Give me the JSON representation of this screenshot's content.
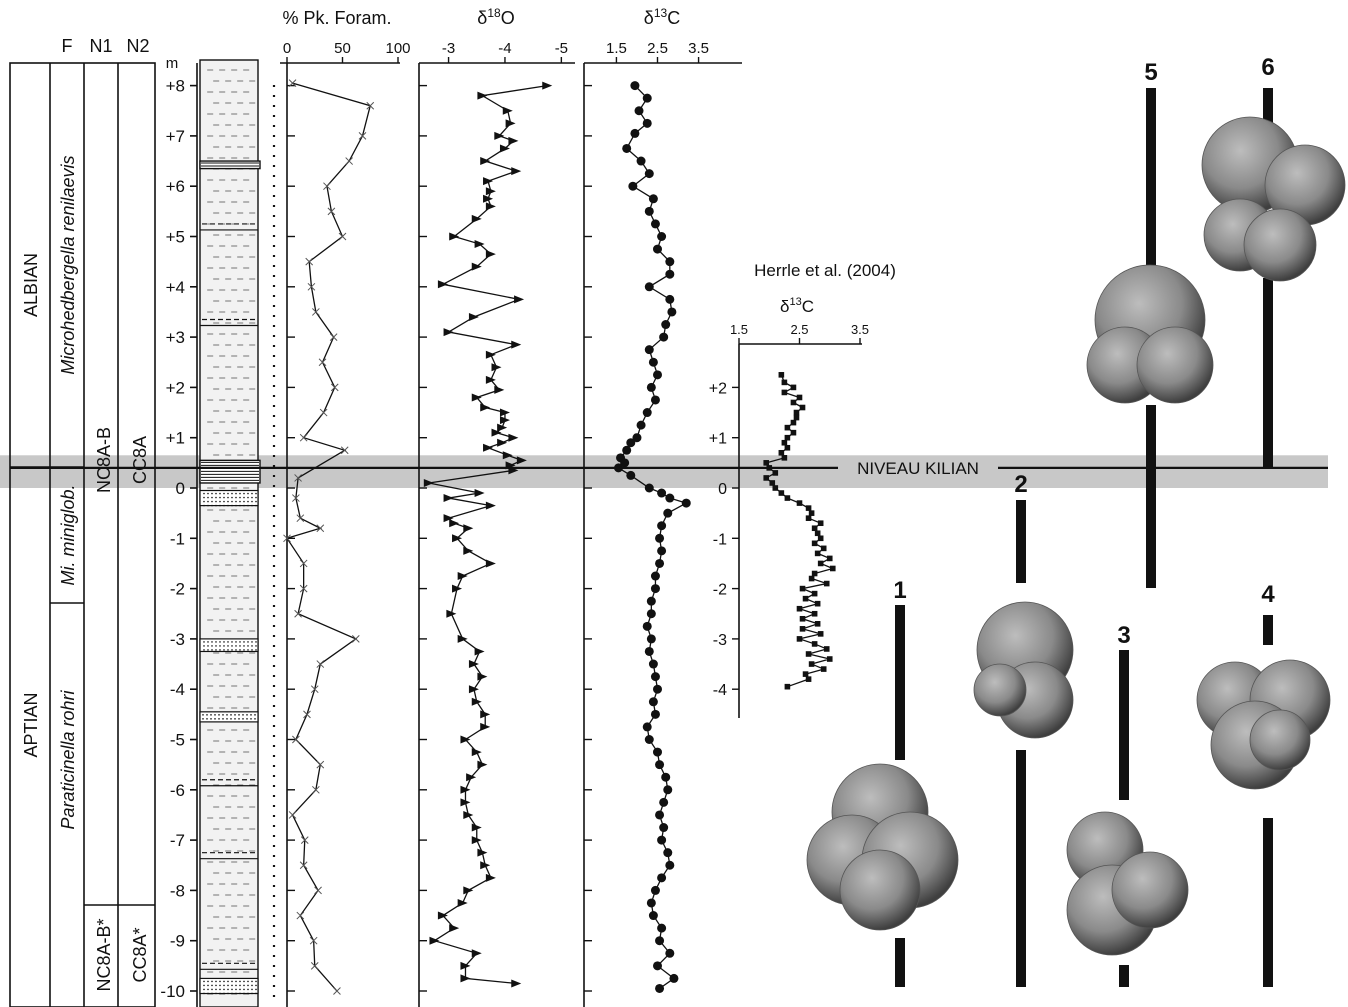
{
  "columns": {
    "headers": [
      "F",
      "N1",
      "N2"
    ],
    "depth_unit": "m",
    "stages": [
      "ALBIAN",
      "APTIAN"
    ],
    "zones_F": [
      "Microhedbergella renilaevis",
      "Mi. miniglob.",
      "Paraticinella rohri"
    ],
    "zones_N1": [
      "NC8A-B",
      "NC8A-B*"
    ],
    "zones_N2": [
      "CC8A",
      "CC8A*"
    ]
  },
  "depth_ticks": [
    "+8",
    "+7",
    "+6",
    "+5",
    "+4",
    "+3",
    "+2",
    "+1",
    "0",
    "-1",
    "-2",
    "-3",
    "-4",
    "-5",
    "-6",
    "-7",
    "-8",
    "-9",
    "-10"
  ],
  "marker": {
    "label": "NIVEAU KILIAN",
    "depth": 0.4,
    "band": [
      0.0,
      0.65
    ]
  },
  "herrle_title": "Herrle et al. (2004)",
  "specimens": [
    "1",
    "2",
    "3",
    "4",
    "5",
    "6"
  ],
  "chart_data": [
    {
      "type": "line",
      "title": "% Pk. Foram.",
      "xlim": [
        0,
        100
      ],
      "x_ticks": [
        "0",
        "50",
        "100"
      ],
      "ylabel": "m",
      "marker": "x",
      "series": [
        {
          "y": [
            8.05,
            7.6,
            7.0,
            6.5,
            6.0,
            5.5,
            5.0,
            4.5,
            4.0,
            3.5,
            3.0,
            2.5,
            2.0,
            1.5,
            1.0,
            0.75,
            0.2,
            -0.2,
            -0.6,
            -0.8,
            -1.0,
            -1.5,
            -2.0,
            -2.5,
            -3.0,
            -3.5,
            -4.0,
            -4.5,
            -5.0,
            -5.5,
            -6.0,
            -6.5,
            -7.0,
            -7.5,
            -8.0,
            -8.5,
            -9.0,
            -9.5,
            -10.0
          ],
          "x": [
            5,
            75,
            68,
            56,
            36,
            40,
            50,
            20,
            22,
            26,
            42,
            32,
            43,
            33,
            15,
            52,
            10,
            8,
            12,
            30,
            0,
            15,
            15,
            10,
            62,
            30,
            25,
            18,
            8,
            30,
            26,
            5,
            16,
            15,
            28,
            12,
            24,
            25,
            45
          ]
        }
      ]
    },
    {
      "type": "line",
      "title": "δ18O",
      "xlim": [
        -2.6,
        -5.1
      ],
      "x_ticks": [
        "-3",
        "-4",
        "-5"
      ],
      "marker": "triangle",
      "series": [
        {
          "y": [
            8.0,
            7.8,
            7.5,
            7.25,
            7.0,
            6.9,
            6.75,
            6.5,
            6.3,
            6.1,
            5.9,
            5.75,
            5.6,
            5.35,
            5.0,
            4.85,
            4.65,
            4.4,
            4.05,
            3.75,
            3.4,
            3.1,
            2.85,
            2.65,
            2.4,
            2.15,
            1.95,
            1.8,
            1.6,
            1.5,
            1.35,
            1.2,
            1.1,
            1.0,
            0.9,
            0.8,
            0.65,
            0.55,
            0.45,
            0.35,
            0.1,
            -0.1,
            -0.2,
            -0.35,
            -0.6,
            -0.7,
            -0.8,
            -1.0,
            -1.25,
            -1.5,
            -1.75,
            -2.0,
            -2.5,
            -3.0,
            -3.25,
            -3.5,
            -3.75,
            -4.0,
            -4.25,
            -4.5,
            -4.75,
            -5.0,
            -5.25,
            -5.5,
            -5.75,
            -6.0,
            -6.25,
            -6.5,
            -6.75,
            -7.0,
            -7.25,
            -7.5,
            -7.75,
            -8.0,
            -8.25,
            -8.5,
            -8.75,
            -9.0,
            -9.25,
            -9.5,
            -9.75,
            -9.85
          ],
          "x": [
            -4.75,
            -3.6,
            -4.05,
            -4.1,
            -3.9,
            -4.15,
            -4.0,
            -3.65,
            -4.2,
            -3.7,
            -3.75,
            -3.7,
            -3.75,
            -3.5,
            -3.1,
            -3.55,
            -3.75,
            -3.5,
            -2.9,
            -4.25,
            -3.45,
            -3.0,
            -4.2,
            -3.75,
            -3.85,
            -3.75,
            -3.9,
            -3.5,
            -3.65,
            -4.0,
            -4.0,
            -3.95,
            -3.85,
            -4.15,
            -3.95,
            -3.7,
            -4.05,
            -4.3,
            -4.1,
            -4.15,
            -2.65,
            -3.55,
            -3.0,
            -3.75,
            -3.0,
            -3.1,
            -3.35,
            -3.15,
            -3.35,
            -3.75,
            -3.25,
            -3.15,
            -3.05,
            -3.25,
            -3.55,
            -3.45,
            -3.6,
            -3.45,
            -3.5,
            -3.65,
            -3.65,
            -3.3,
            -3.5,
            -3.6,
            -3.4,
            -3.3,
            -3.3,
            -3.35,
            -3.5,
            -3.5,
            -3.6,
            -3.65,
            -3.75,
            -3.35,
            -3.25,
            -2.9,
            -3.1,
            -2.75,
            -3.5,
            -3.3,
            -3.3,
            -4.2
          ]
        }
      ]
    },
    {
      "type": "line",
      "title": "δ13C",
      "xlim": [
        1.1,
        3.9
      ],
      "x_ticks": [
        "1.5",
        "2.5",
        "3.5"
      ],
      "marker": "circle",
      "series": [
        {
          "y": [
            8.0,
            7.75,
            7.5,
            7.25,
            7.05,
            6.75,
            6.5,
            6.25,
            6.0,
            5.75,
            5.5,
            5.25,
            5.0,
            4.75,
            4.5,
            4.25,
            4.0,
            3.75,
            3.5,
            3.25,
            3.0,
            2.75,
            2.5,
            2.25,
            2.0,
            1.75,
            1.5,
            1.25,
            1.0,
            0.9,
            0.75,
            0.6,
            0.5,
            0.4,
            0.25,
            0.0,
            -0.1,
            -0.2,
            -0.3,
            -0.5,
            -0.75,
            -1.0,
            -1.25,
            -1.5,
            -1.75,
            -2.0,
            -2.25,
            -2.5,
            -2.75,
            -3.0,
            -3.25,
            -3.5,
            -3.75,
            -4.0,
            -4.25,
            -4.5,
            -4.75,
            -5.0,
            -5.25,
            -5.5,
            -5.75,
            -6.0,
            -6.25,
            -6.5,
            -6.75,
            -7.0,
            -7.25,
            -7.5,
            -7.75,
            -8.0,
            -8.25,
            -8.5,
            -8.75,
            -9.0,
            -9.25,
            -9.5,
            -9.75,
            -9.95
          ],
          "x": [
            1.95,
            2.25,
            2.05,
            2.25,
            1.95,
            1.75,
            2.1,
            2.3,
            1.9,
            2.4,
            2.3,
            2.45,
            2.6,
            2.5,
            2.8,
            2.8,
            2.3,
            2.8,
            2.85,
            2.7,
            2.65,
            2.3,
            2.4,
            2.5,
            2.35,
            2.45,
            2.25,
            2.1,
            2.0,
            1.85,
            1.75,
            1.6,
            1.7,
            1.55,
            1.85,
            2.3,
            2.6,
            2.8,
            3.2,
            2.75,
            2.6,
            2.55,
            2.6,
            2.55,
            2.45,
            2.45,
            2.35,
            2.35,
            2.25,
            2.35,
            2.3,
            2.4,
            2.45,
            2.5,
            2.4,
            2.45,
            2.25,
            2.3,
            2.5,
            2.55,
            2.7,
            2.75,
            2.65,
            2.55,
            2.65,
            2.6,
            2.75,
            2.8,
            2.6,
            2.45,
            2.35,
            2.4,
            2.6,
            2.55,
            2.8,
            2.5,
            2.9,
            2.55
          ]
        }
      ]
    },
    {
      "type": "line",
      "title": "δ13C",
      "xlim": [
        1.5,
        3.5
      ],
      "x_ticks": [
        "1.5",
        "2.5",
        "3.5"
      ],
      "y_ticks": [
        "+2",
        "+1",
        "0",
        "-1",
        "-2",
        "-3",
        "-4"
      ],
      "marker": "square",
      "series": [
        {
          "y": [
            2.25,
            2.1,
            2.0,
            1.9,
            1.8,
            1.7,
            1.6,
            1.5,
            1.4,
            1.3,
            1.2,
            1.1,
            1.0,
            0.9,
            0.8,
            0.7,
            0.6,
            0.5,
            0.4,
            0.3,
            0.2,
            0.1,
            0.0,
            -0.1,
            -0.2,
            -0.3,
            -0.4,
            -0.5,
            -0.6,
            -0.7,
            -0.8,
            -0.9,
            -1.0,
            -1.1,
            -1.2,
            -1.3,
            -1.4,
            -1.5,
            -1.6,
            -1.7,
            -1.8,
            -1.9,
            -2.0,
            -2.1,
            -2.2,
            -2.3,
            -2.4,
            -2.5,
            -2.6,
            -2.7,
            -2.8,
            -2.9,
            -3.0,
            -3.1,
            -3.2,
            -3.3,
            -3.4,
            -3.5,
            -3.6,
            -3.7,
            -3.8,
            -3.95
          ],
          "x": [
            2.2,
            2.25,
            2.4,
            2.25,
            2.5,
            2.4,
            2.55,
            2.45,
            2.45,
            2.4,
            2.3,
            2.4,
            2.3,
            2.25,
            2.3,
            2.2,
            2.25,
            1.95,
            2.0,
            2.1,
            1.95,
            2.05,
            2.1,
            2.2,
            2.3,
            2.5,
            2.65,
            2.7,
            2.65,
            2.85,
            2.75,
            2.8,
            2.85,
            2.75,
            2.9,
            2.8,
            3.0,
            2.85,
            3.05,
            2.75,
            2.7,
            2.95,
            2.55,
            2.75,
            2.6,
            2.8,
            2.5,
            2.75,
            2.55,
            2.8,
            2.55,
            2.85,
            2.5,
            2.75,
            2.95,
            2.65,
            3.0,
            2.7,
            2.9,
            2.6,
            2.65,
            2.3
          ]
        }
      ]
    }
  ]
}
